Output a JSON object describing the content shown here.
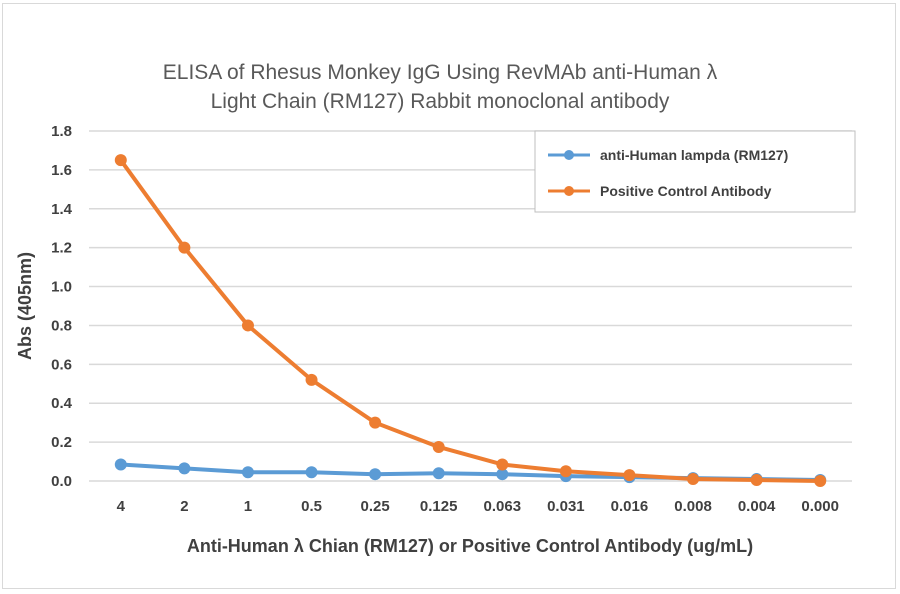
{
  "chart_data": {
    "type": "line",
    "title_line1": "ELISA of Rhesus Monkey IgG Using RevMAb anti-Human  λ",
    "title_line2": "Light Chain (RM127) Rabbit monoclonal antibody",
    "xlabel": "Anti-Human λ Chian (RM127) or Positive Control Antibody (ug/mL)",
    "ylabel": "Abs (405nm)",
    "ylim": [
      0,
      1.8
    ],
    "yticks": [
      "0.0",
      "0.2",
      "0.4",
      "0.6",
      "0.8",
      "1.0",
      "1.2",
      "1.4",
      "1.6",
      "1.8"
    ],
    "categories": [
      "4",
      "2",
      "1",
      "0.5",
      "0.25",
      "0.125",
      "0.063",
      "0.031",
      "0.016",
      "0.008",
      "0.004",
      "0.000"
    ],
    "grid": true,
    "legend_position": "top-right",
    "series": [
      {
        "name": "anti-Human lampda (RM127)",
        "color": "#5b9bd5",
        "values": [
          0.085,
          0.065,
          0.045,
          0.045,
          0.035,
          0.04,
          0.035,
          0.025,
          0.02,
          0.015,
          0.01,
          0.005
        ]
      },
      {
        "name": "Positive Control Antibody",
        "color": "#ed7d31",
        "values": [
          1.65,
          1.2,
          0.8,
          0.52,
          0.3,
          0.175,
          0.085,
          0.05,
          0.03,
          0.01,
          0.005,
          0.0
        ]
      }
    ]
  }
}
